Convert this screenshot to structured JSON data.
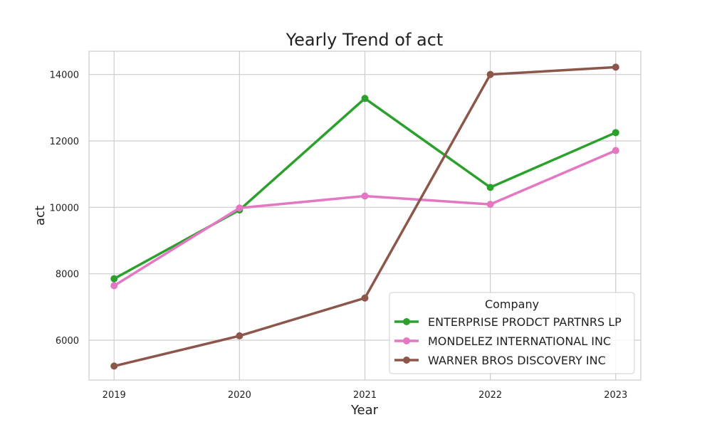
{
  "chart_data": {
    "type": "line",
    "title": "Yearly Trend of act",
    "xlabel": "Year",
    "ylabel": "act",
    "x": [
      "2019",
      "2020",
      "2021",
      "2022",
      "2023"
    ],
    "xlim": [
      2018.8,
      2023.2
    ],
    "ylim": [
      4800,
      14700
    ],
    "yticks": [
      6000,
      8000,
      10000,
      12000,
      14000
    ],
    "grid": true,
    "legend": {
      "title": "Company",
      "placement": "lower-right"
    },
    "series": [
      {
        "name": "ENTERPRISE PRODCT PARTNRS LP",
        "color": "#2ca02c",
        "values": [
          7850,
          9920,
          13280,
          10600,
          12250
        ]
      },
      {
        "name": "MONDELEZ INTERNATIONAL INC",
        "color": "#e377c2",
        "values": [
          7640,
          9980,
          10340,
          10090,
          11710
        ]
      },
      {
        "name": "WARNER BROS DISCOVERY INC",
        "color": "#8c564b",
        "values": [
          5220,
          6130,
          7270,
          14000,
          14220
        ]
      }
    ]
  }
}
